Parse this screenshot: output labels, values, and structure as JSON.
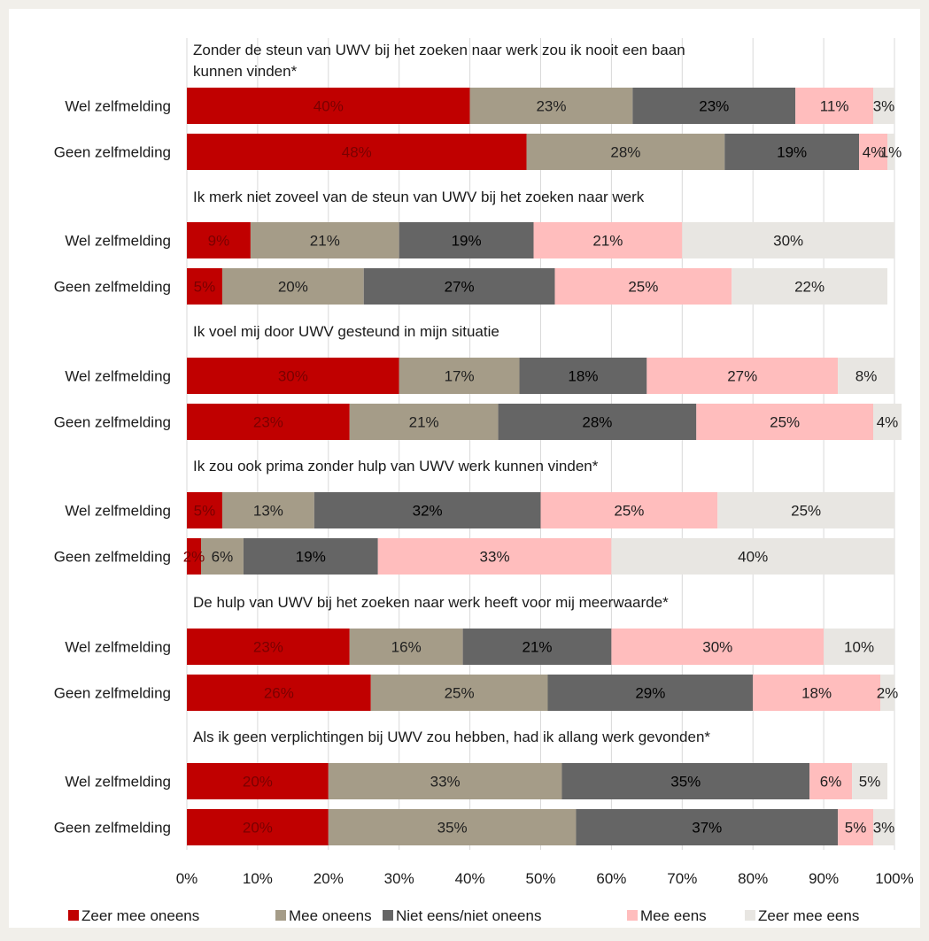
{
  "chart_data": {
    "type": "bar",
    "orientation": "horizontal",
    "stacked": true,
    "percent_stacked": true,
    "xlim": [
      0,
      100
    ],
    "x_ticks": [
      "0%",
      "10%",
      "20%",
      "30%",
      "40%",
      "50%",
      "60%",
      "70%",
      "80%",
      "90%",
      "100%"
    ],
    "grid": "vertical",
    "legend_position": "bottom",
    "series": [
      {
        "name": "Zeer mee oneens",
        "color": "#c00000",
        "label_color": "#7a0000"
      },
      {
        "name": "Mee oneens",
        "color": "#a59c88",
        "label_color": "#1f1f1f"
      },
      {
        "name": "Niet eens/niet oneens",
        "color": "#656565",
        "label_color": "#000000"
      },
      {
        "name": "Mee eens",
        "color": "#ffbdbd",
        "label_color": "#1f1f1f"
      },
      {
        "name": "Zeer mee eens",
        "color": "#e8e6e2",
        "label_color": "#1f1f1f"
      }
    ],
    "groups": [
      {
        "title": [
          "Zonder de steun van UWV bij het zoeken naar werk zou ik nooit een baan",
          "kunnen vinden*"
        ],
        "rows": [
          {
            "label": "Wel zelfmelding",
            "values": [
              40,
              23,
              23,
              11,
              3
            ],
            "value_labels": [
              "40%",
              "23%",
              "23%",
              "11%",
              "3%"
            ]
          },
          {
            "label": "Geen zelfmelding",
            "values": [
              48,
              28,
              19,
              4,
              1
            ],
            "value_labels": [
              "48%",
              "28%",
              "19%",
              "4%",
              "1%"
            ]
          }
        ]
      },
      {
        "title": [
          "Ik merk niet zoveel van de steun van UWV bij het zoeken naar werk"
        ],
        "rows": [
          {
            "label": "Wel zelfmelding",
            "values": [
              9,
              21,
              19,
              21,
              30
            ],
            "value_labels": [
              "9%",
              "21%",
              "19%",
              "21%",
              "30%"
            ]
          },
          {
            "label": "Geen zelfmelding",
            "values": [
              5,
              20,
              27,
              25,
              22
            ],
            "value_labels": [
              "5%",
              "20%",
              "27%",
              "25%",
              "22%"
            ]
          }
        ]
      },
      {
        "title": [
          "Ik voel mij door UWV gesteund in mijn situatie"
        ],
        "rows": [
          {
            "label": "Wel zelfmelding",
            "values": [
              30,
              17,
              18,
              27,
              8
            ],
            "value_labels": [
              "30%",
              "17%",
              "18%",
              "27%",
              "8%"
            ]
          },
          {
            "label": "Geen zelfmelding",
            "values": [
              23,
              21,
              28,
              25,
              4
            ],
            "value_labels": [
              "23%",
              "21%",
              "28%",
              "25%",
              "4%"
            ]
          }
        ]
      },
      {
        "title": [
          "Ik zou ook prima zonder hulp van UWV werk kunnen vinden*"
        ],
        "rows": [
          {
            "label": "Wel zelfmelding",
            "values": [
              5,
              13,
              32,
              25,
              25
            ],
            "value_labels": [
              "5%",
              "13%",
              "32%",
              "25%",
              "25%"
            ]
          },
          {
            "label": "Geen zelfmelding",
            "values": [
              2,
              6,
              19,
              33,
              40
            ],
            "value_labels": [
              "2%",
              "6%",
              "19%",
              "33%",
              "40%"
            ]
          }
        ]
      },
      {
        "title": [
          "De hulp van UWV bij het zoeken naar werk heeft voor mij meerwaarde*"
        ],
        "rows": [
          {
            "label": "Wel zelfmelding",
            "values": [
              23,
              16,
              21,
              30,
              10
            ],
            "value_labels": [
              "23%",
              "16%",
              "21%",
              "30%",
              "10%"
            ]
          },
          {
            "label": "Geen zelfmelding",
            "values": [
              26,
              25,
              29,
              18,
              2
            ],
            "value_labels": [
              "26%",
              "25%",
              "29%",
              "18%",
              "2%"
            ]
          }
        ]
      },
      {
        "title": [
          "Als ik geen verplichtingen bij UWV zou hebben, had ik allang werk gevonden*"
        ],
        "rows": [
          {
            "label": "Wel zelfmelding",
            "values": [
              20,
              33,
              35,
              6,
              5
            ],
            "value_labels": [
              "20%",
              "33%",
              "35%",
              "6%",
              "5%"
            ]
          },
          {
            "label": "Geen zelfmelding",
            "values": [
              20,
              35,
              37,
              5,
              3
            ],
            "value_labels": [
              "20%",
              "35%",
              "37%",
              "5%",
              "3%"
            ]
          }
        ]
      }
    ]
  }
}
